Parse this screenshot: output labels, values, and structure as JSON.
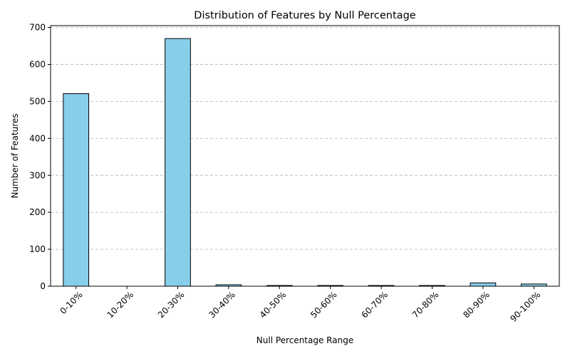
{
  "chart_data": {
    "type": "bar",
    "title": "Distribution of Features by Null Percentage",
    "xlabel": "Null Percentage Range",
    "ylabel": "Number of Features",
    "categories": [
      "0-10%",
      "10-20%",
      "20-30%",
      "30-40%",
      "40-50%",
      "50-60%",
      "60-70%",
      "70-80%",
      "80-90%",
      "90-100%"
    ],
    "values": [
      521,
      0,
      670,
      4,
      2,
      2,
      2,
      2,
      9,
      6
    ],
    "ylim": [
      0,
      705
    ],
    "yticks": [
      0,
      100,
      200,
      300,
      400,
      500,
      600,
      700
    ],
    "grid": "y-dashed",
    "colors": {
      "bar_fill": "#87CEEB",
      "bar_edge": "#000000"
    }
  }
}
